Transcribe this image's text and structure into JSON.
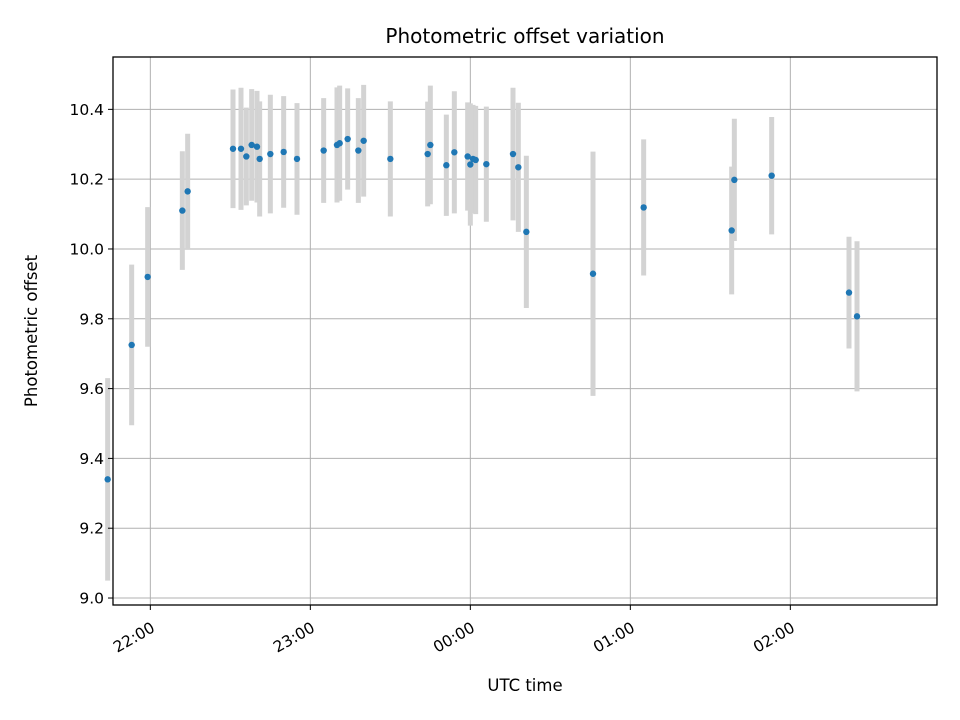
{
  "chart_data": {
    "type": "scatter",
    "title": "Photometric offset variation",
    "xlabel": "UTC time",
    "ylabel": "Photometric offset",
    "x_unit": "UTC time of day (HH:MM), observation spanning midnight; first date shown = evening",
    "xlim": [
      "21:46",
      "02:55"
    ],
    "ylim": [
      8.98,
      10.55
    ],
    "x_ticks": [
      "22:00",
      "23:00",
      "00:00",
      "01:00",
      "02:00"
    ],
    "y_ticks": [
      "9.0",
      "9.2",
      "9.4",
      "9.6",
      "9.8",
      "10.0",
      "10.2",
      "10.4"
    ],
    "grid": true,
    "errorbar_color": "#d3d3d3",
    "point_color": "#1f77b4",
    "points": [
      {
        "time": "21:44",
        "y": 9.34,
        "err": 0.29
      },
      {
        "time": "21:53",
        "y": 9.725,
        "err": 0.23
      },
      {
        "time": "21:59",
        "y": 9.92,
        "err": 0.2
      },
      {
        "time": "22:12",
        "y": 10.11,
        "err": 0.17
      },
      {
        "time": "22:14",
        "y": 10.165,
        "err": 0.165
      },
      {
        "time": "22:31",
        "y": 10.287,
        "err": 0.17
      },
      {
        "time": "22:34",
        "y": 10.287,
        "err": 0.175
      },
      {
        "time": "22:36",
        "y": 10.265,
        "err": 0.14
      },
      {
        "time": "22:38",
        "y": 10.298,
        "err": 0.16
      },
      {
        "time": "22:40",
        "y": 10.293,
        "err": 0.16
      },
      {
        "time": "22:41",
        "y": 10.258,
        "err": 0.165
      },
      {
        "time": "22:45",
        "y": 10.272,
        "err": 0.17
      },
      {
        "time": "22:50",
        "y": 10.278,
        "err": 0.16
      },
      {
        "time": "22:55",
        "y": 10.258,
        "err": 0.16
      },
      {
        "time": "23:05",
        "y": 10.282,
        "err": 0.15
      },
      {
        "time": "23:10",
        "y": 10.298,
        "err": 0.165
      },
      {
        "time": "23:11",
        "y": 10.303,
        "err": 0.165
      },
      {
        "time": "23:14",
        "y": 10.315,
        "err": 0.145
      },
      {
        "time": "23:18",
        "y": 10.282,
        "err": 0.15
      },
      {
        "time": "23:20",
        "y": 10.31,
        "err": 0.16
      },
      {
        "time": "23:30",
        "y": 10.258,
        "err": 0.165
      },
      {
        "time": "23:44",
        "y": 10.272,
        "err": 0.15
      },
      {
        "time": "23:45",
        "y": 10.298,
        "err": 0.17
      },
      {
        "time": "23:51",
        "y": 10.24,
        "err": 0.145
      },
      {
        "time": "23:54",
        "y": 10.277,
        "err": 0.175
      },
      {
        "time": "23:59",
        "y": 10.265,
        "err": 0.155
      },
      {
        "time": "00:00",
        "y": 10.242,
        "err": 0.175
      },
      {
        "time": "00:01",
        "y": 10.258,
        "err": 0.155
      },
      {
        "time": "00:02",
        "y": 10.255,
        "err": 0.155
      },
      {
        "time": "00:06",
        "y": 10.243,
        "err": 0.165
      },
      {
        "time": "00:16",
        "y": 10.272,
        "err": 0.19
      },
      {
        "time": "00:18",
        "y": 10.234,
        "err": 0.185
      },
      {
        "time": "00:21",
        "y": 10.049,
        "err": 0.218
      },
      {
        "time": "00:46",
        "y": 9.929,
        "err": 0.35
      },
      {
        "time": "01:05",
        "y": 10.119,
        "err": 0.195
      },
      {
        "time": "01:38",
        "y": 10.053,
        "err": 0.183
      },
      {
        "time": "01:39",
        "y": 10.198,
        "err": 0.175
      },
      {
        "time": "01:53",
        "y": 10.21,
        "err": 0.168
      },
      {
        "time": "02:22",
        "y": 9.875,
        "err": 0.16
      },
      {
        "time": "02:25",
        "y": 9.807,
        "err": 0.215
      }
    ]
  }
}
